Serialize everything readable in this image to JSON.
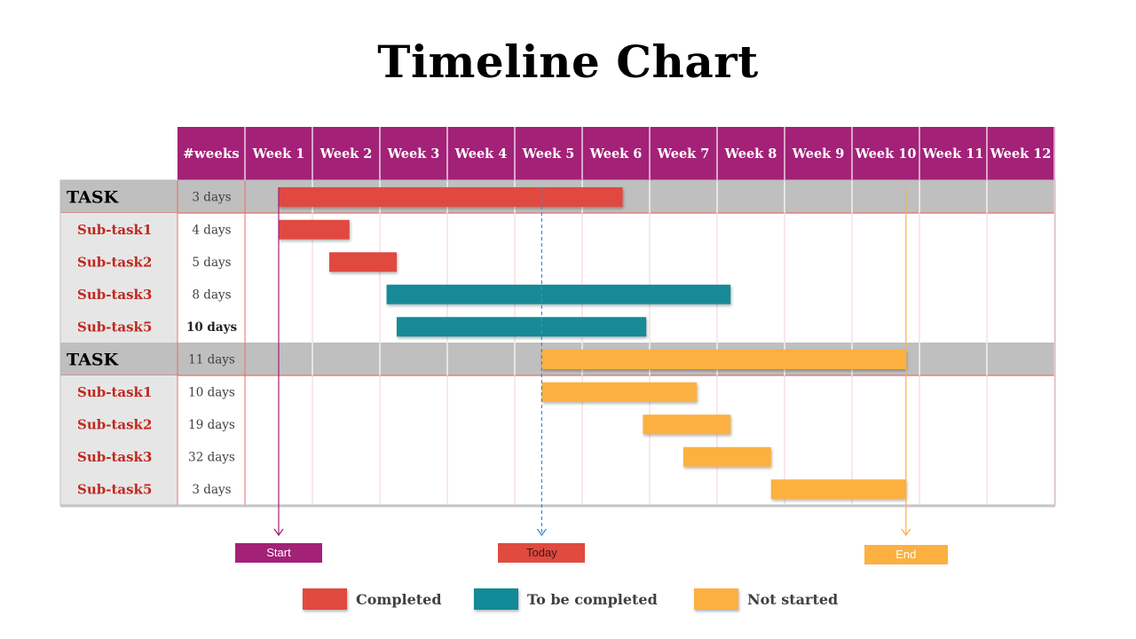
{
  "title": "Timeline Chart",
  "chart_data": {
    "type": "gantt",
    "header": {
      "count_label": "#weeks",
      "weeks": [
        "Week 1",
        "Week 2",
        "Week 3",
        "Week 4",
        "Week 5",
        "Week 6",
        "Week 7",
        "Week 8",
        "Week 9",
        "Week 10",
        "Week 11",
        "Week 12"
      ]
    },
    "rows": [
      {
        "name": "TASK",
        "kind": "task",
        "duration": "3 days",
        "start": 0.5,
        "end": 5.6,
        "status": "completed"
      },
      {
        "name": "Sub-task1",
        "kind": "subtask",
        "duration": "4 days",
        "start": 0.5,
        "end": 1.55,
        "status": "completed"
      },
      {
        "name": "Sub-task2",
        "kind": "subtask",
        "duration": "5 days",
        "start": 1.25,
        "end": 2.25,
        "status": "completed"
      },
      {
        "name": "Sub-task3",
        "kind": "subtask",
        "duration": "8 days",
        "start": 2.1,
        "end": 7.2,
        "status": "to_be_completed"
      },
      {
        "name": "Sub-task5",
        "kind": "subtask",
        "duration": "10 days",
        "start": 2.25,
        "end": 5.95,
        "status": "to_be_completed"
      },
      {
        "name": "TASK",
        "kind": "task",
        "duration": "11 days",
        "start": 4.4,
        "end": 9.8,
        "status": "not_started"
      },
      {
        "name": "Sub-task1",
        "kind": "subtask",
        "duration": "10 days",
        "start": 4.4,
        "end": 6.7,
        "status": "not_started"
      },
      {
        "name": "Sub-task2",
        "kind": "subtask",
        "duration": "19 days",
        "start": 5.9,
        "end": 7.2,
        "status": "not_started"
      },
      {
        "name": "Sub-task3",
        "kind": "subtask",
        "duration": "32 days",
        "start": 6.5,
        "end": 7.8,
        "status": "not_started"
      },
      {
        "name": "Sub-task5",
        "kind": "subtask",
        "duration": "3 days",
        "start": 7.8,
        "end": 9.8,
        "status": "not_started"
      }
    ],
    "markers": [
      {
        "label": "Start",
        "position": 0.5,
        "color": "#a32177"
      },
      {
        "label": "Today",
        "position": 4.4,
        "color": "#e04a3f"
      },
      {
        "label": "End",
        "position": 9.8,
        "color": "#fcb040"
      }
    ],
    "legend": [
      {
        "key": "completed",
        "label": "Completed",
        "color": "#e04a3f"
      },
      {
        "key": "to_be_completed",
        "label": "To be completed",
        "color": "#128a97"
      },
      {
        "key": "not_started",
        "label": "Not started",
        "color": "#fcb040"
      }
    ],
    "colors": {
      "header": "#a32177",
      "task_row": "#bfbfbf",
      "label_column": "#e6e6e6",
      "subtask_text": "#c0281f"
    }
  }
}
